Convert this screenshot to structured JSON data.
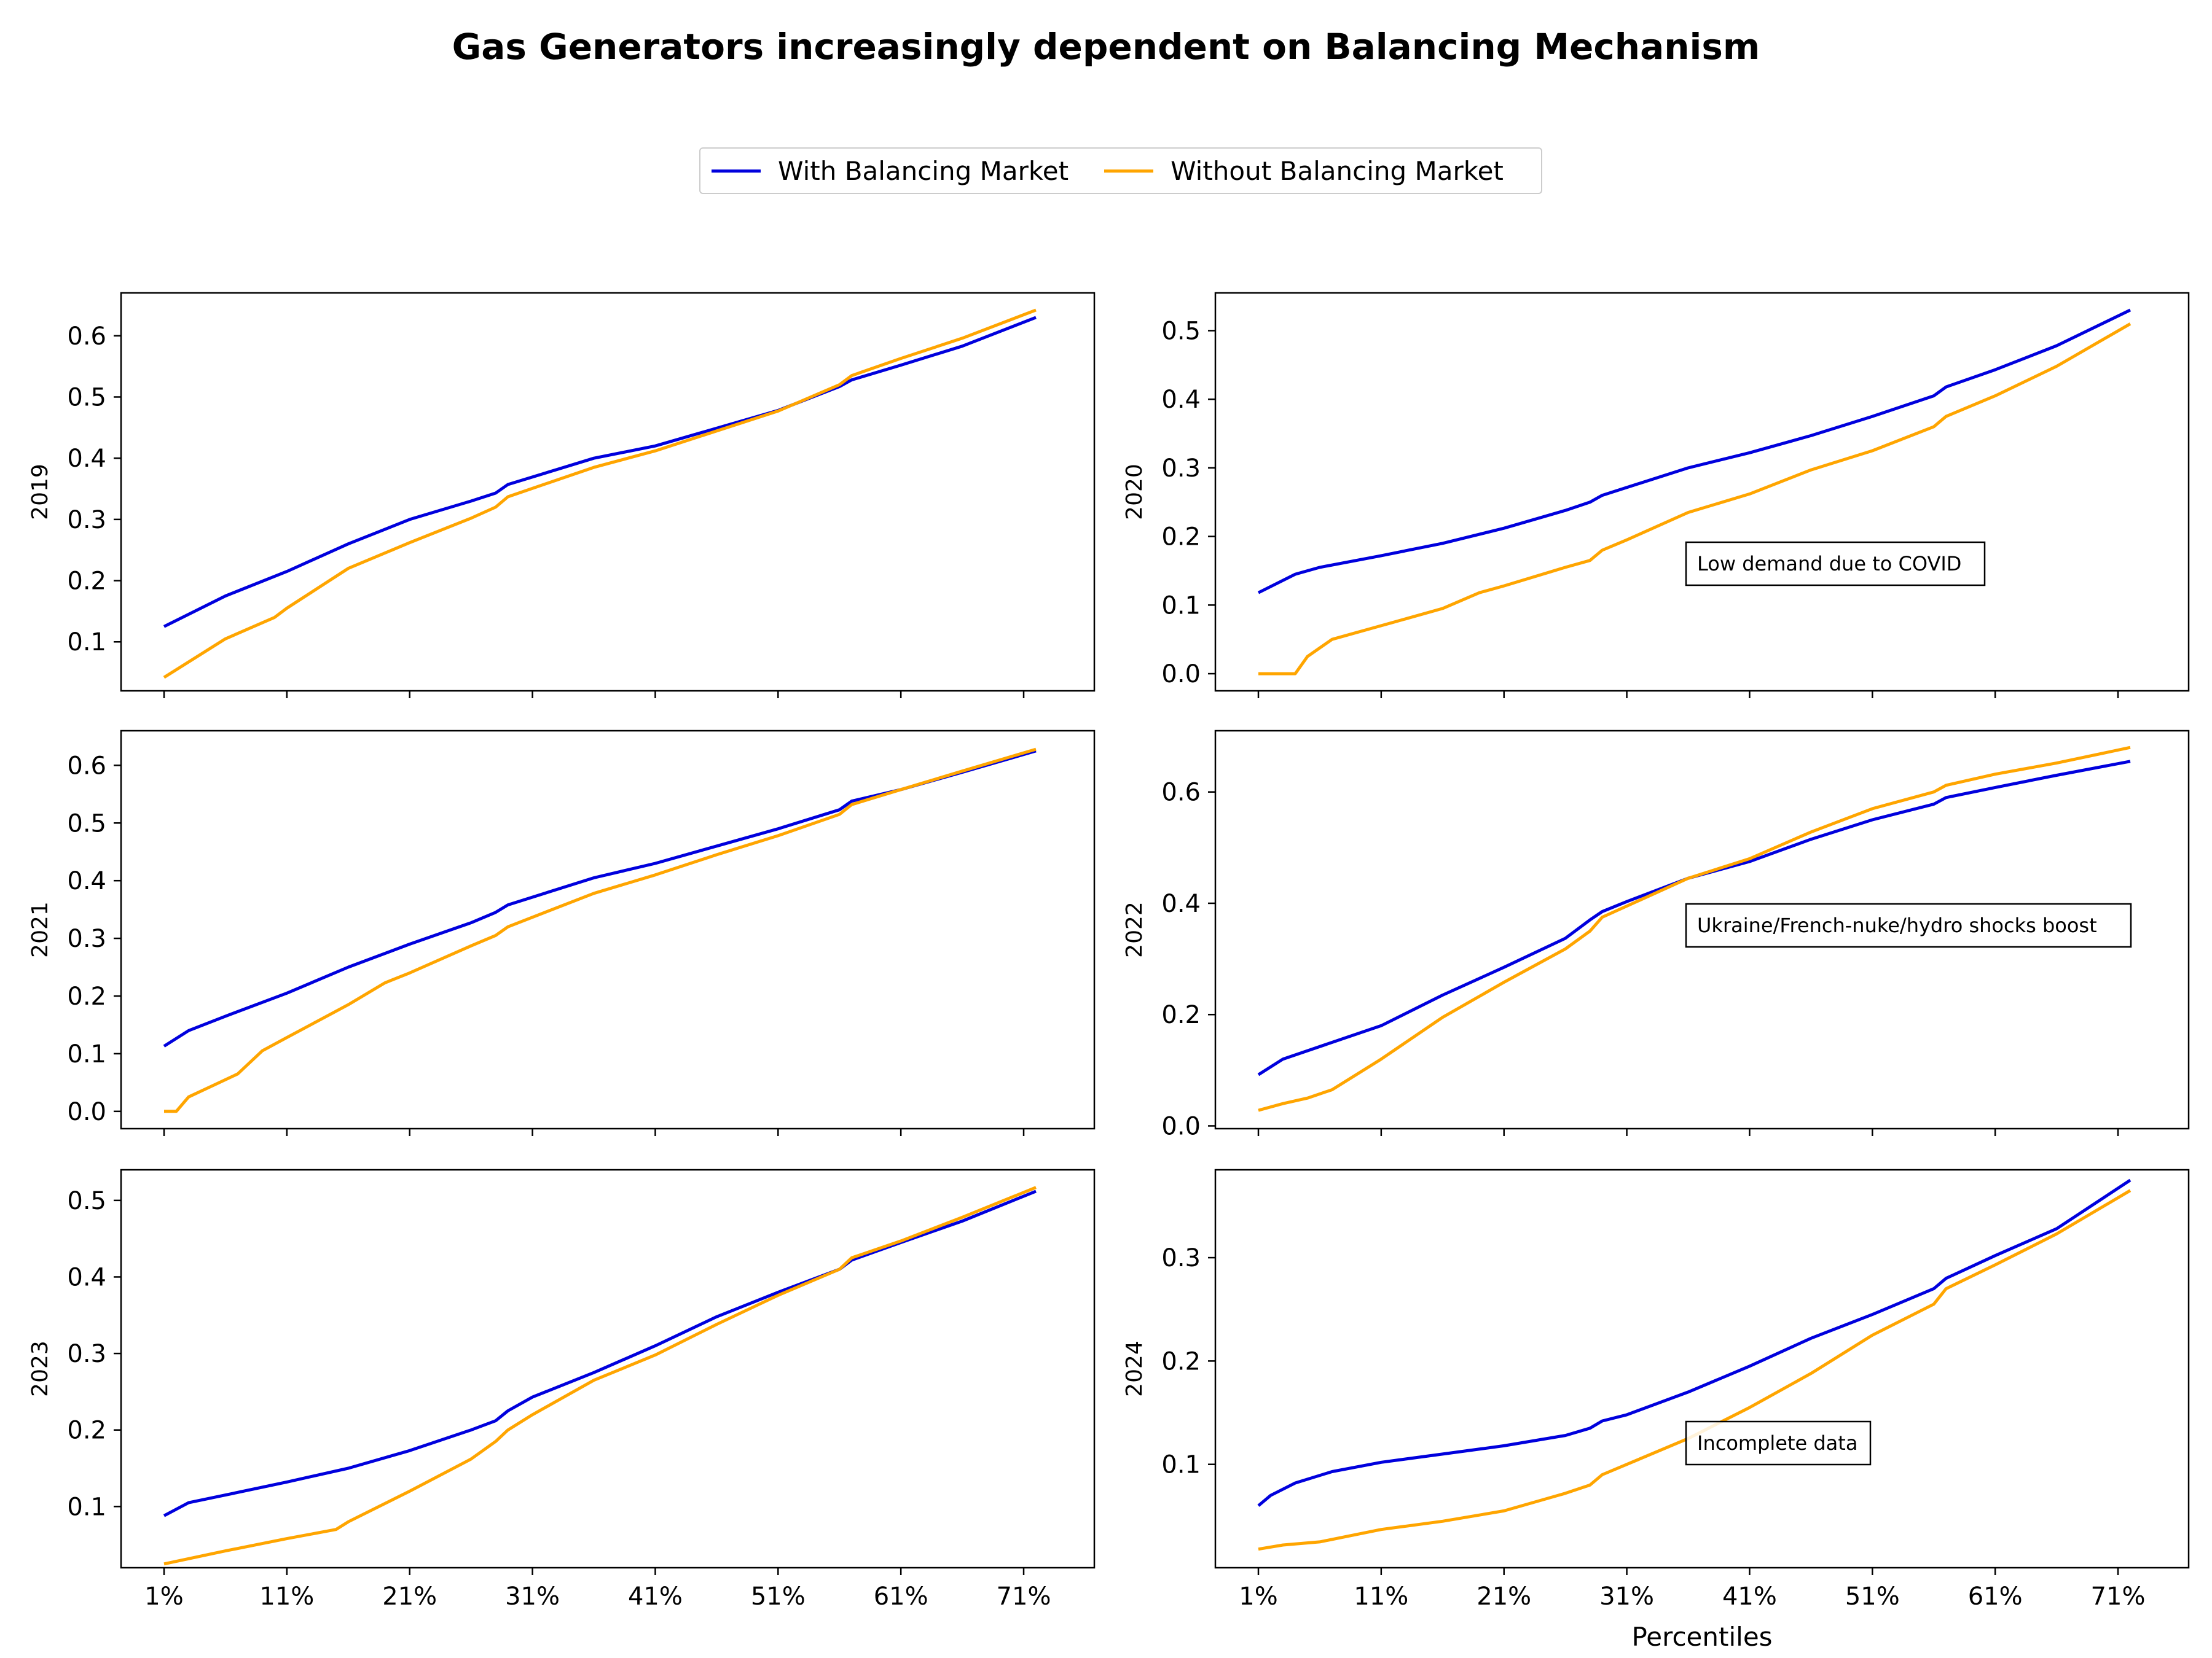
{
  "title": "Gas Generators increasingly dependent on Balancing Mechanism",
  "colors": {
    "with": "#0000dd",
    "without": "#ffa500"
  },
  "legend": [
    {
      "label": "With Balancing Market",
      "color": "#0000dd"
    },
    {
      "label": "Without Balancing Market",
      "color": "#ffa500"
    }
  ],
  "x_tick_labels": [
    "1%",
    "11%",
    "21%",
    "31%",
    "41%",
    "51%",
    "61%",
    "71%"
  ],
  "x_label": "Percentiles",
  "chart_data": [
    {
      "type": "line",
      "ylabel": "2019",
      "xlim": [
        1,
        72
      ],
      "ylim": [
        0.02,
        0.67
      ],
      "yticks": [
        0.1,
        0.2,
        0.3,
        0.4,
        0.5,
        0.6
      ],
      "grid": false,
      "annotation": "",
      "series": [
        {
          "name": "With Balancing Market",
          "x": [
            1,
            6,
            11,
            16,
            21,
            26,
            28,
            29,
            36,
            41,
            51,
            56,
            57,
            61,
            66,
            72
          ],
          "y": [
            0.125,
            0.175,
            0.215,
            0.26,
            0.3,
            0.33,
            0.343,
            0.357,
            0.4,
            0.42,
            0.478,
            0.517,
            0.528,
            0.552,
            0.583,
            0.63
          ]
        },
        {
          "name": "Without Balancing Market",
          "x": [
            1,
            6,
            10,
            11,
            16,
            21,
            26,
            28,
            29,
            36,
            41,
            51,
            56,
            57,
            61,
            66,
            72
          ],
          "y": [
            0.042,
            0.105,
            0.14,
            0.155,
            0.22,
            0.262,
            0.302,
            0.32,
            0.337,
            0.385,
            0.412,
            0.477,
            0.52,
            0.535,
            0.563,
            0.596,
            0.642
          ]
        }
      ]
    },
    {
      "type": "line",
      "ylabel": "2020",
      "xlim": [
        1,
        72
      ],
      "ylim": [
        -0.025,
        0.555
      ],
      "yticks": [
        0.0,
        0.1,
        0.2,
        0.3,
        0.4,
        0.5
      ],
      "grid": false,
      "annotation": "Low demand due to COVID",
      "series": [
        {
          "name": "With Balancing Market",
          "x": [
            1,
            4,
            6,
            11,
            16,
            21,
            26,
            28,
            29,
            36,
            41,
            46,
            51,
            56,
            57,
            61,
            66,
            72
          ],
          "y": [
            0.118,
            0.145,
            0.155,
            0.172,
            0.19,
            0.212,
            0.238,
            0.25,
            0.26,
            0.3,
            0.322,
            0.347,
            0.375,
            0.405,
            0.418,
            0.443,
            0.478,
            0.53
          ]
        },
        {
          "name": "Without Balancing Market",
          "x": [
            1,
            4,
            5,
            7,
            11,
            16,
            19,
            21,
            26,
            28,
            29,
            31,
            36,
            41,
            46,
            51,
            56,
            57,
            61,
            66,
            72
          ],
          "y": [
            0.0,
            0.0,
            0.025,
            0.05,
            0.07,
            0.095,
            0.118,
            0.128,
            0.155,
            0.165,
            0.18,
            0.195,
            0.235,
            0.262,
            0.297,
            0.325,
            0.36,
            0.375,
            0.405,
            0.448,
            0.51
          ]
        }
      ]
    },
    {
      "type": "line",
      "ylabel": "2021",
      "xlim": [
        1,
        72
      ],
      "ylim": [
        -0.03,
        0.66
      ],
      "yticks": [
        0.0,
        0.1,
        0.2,
        0.3,
        0.4,
        0.5,
        0.6
      ],
      "grid": false,
      "annotation": "",
      "series": [
        {
          "name": "With Balancing Market",
          "x": [
            1,
            3,
            6,
            11,
            16,
            21,
            26,
            28,
            29,
            36,
            41,
            46,
            51,
            56,
            57,
            61,
            66,
            72
          ],
          "y": [
            0.113,
            0.14,
            0.165,
            0.205,
            0.25,
            0.29,
            0.327,
            0.345,
            0.358,
            0.405,
            0.43,
            0.46,
            0.49,
            0.523,
            0.538,
            0.558,
            0.588,
            0.625
          ]
        },
        {
          "name": "Without Balancing Market",
          "x": [
            1,
            2,
            3,
            5,
            7,
            9,
            11,
            16,
            19,
            21,
            26,
            28,
            29,
            36,
            41,
            46,
            51,
            56,
            57,
            61,
            66,
            72
          ],
          "y": [
            0.0,
            0.0,
            0.025,
            0.045,
            0.065,
            0.105,
            0.128,
            0.185,
            0.223,
            0.24,
            0.287,
            0.305,
            0.32,
            0.378,
            0.41,
            0.445,
            0.478,
            0.515,
            0.532,
            0.558,
            0.59,
            0.628
          ]
        }
      ]
    },
    {
      "type": "line",
      "ylabel": "2022",
      "xlim": [
        1,
        72
      ],
      "ylim": [
        -0.005,
        0.71
      ],
      "yticks": [
        0.0,
        0.2,
        0.4,
        0.6
      ],
      "grid": false,
      "annotation": "Ukraine/French-nuke/hydro shocks boost",
      "series": [
        {
          "name": "With Balancing Market",
          "x": [
            1,
            3,
            5,
            11,
            16,
            21,
            26,
            28,
            29,
            31,
            36,
            41,
            46,
            51,
            56,
            57,
            61,
            66,
            72
          ],
          "y": [
            0.092,
            0.12,
            0.135,
            0.18,
            0.235,
            0.285,
            0.337,
            0.37,
            0.385,
            0.403,
            0.445,
            0.475,
            0.515,
            0.55,
            0.578,
            0.59,
            0.608,
            0.63,
            0.655
          ]
        },
        {
          "name": "Without Balancing Market",
          "x": [
            1,
            3,
            5,
            7,
            11,
            16,
            21,
            26,
            28,
            29,
            31,
            36,
            41,
            46,
            51,
            56,
            57,
            61,
            66,
            72
          ],
          "y": [
            0.028,
            0.04,
            0.05,
            0.065,
            0.12,
            0.195,
            0.258,
            0.318,
            0.35,
            0.375,
            0.395,
            0.445,
            0.48,
            0.528,
            0.57,
            0.6,
            0.612,
            0.632,
            0.652,
            0.68
          ]
        }
      ]
    },
    {
      "type": "line",
      "ylabel": "2023",
      "xlim": [
        1,
        72
      ],
      "ylim": [
        0.02,
        0.54
      ],
      "yticks": [
        0.1,
        0.2,
        0.3,
        0.4,
        0.5
      ],
      "grid": false,
      "annotation": "",
      "series": [
        {
          "name": "With Balancing Market",
          "x": [
            1,
            3,
            6,
            11,
            16,
            21,
            26,
            28,
            29,
            31,
            36,
            41,
            46,
            51,
            56,
            57,
            61,
            66,
            72
          ],
          "y": [
            0.088,
            0.105,
            0.115,
            0.132,
            0.15,
            0.173,
            0.2,
            0.212,
            0.225,
            0.243,
            0.275,
            0.31,
            0.348,
            0.38,
            0.41,
            0.422,
            0.445,
            0.473,
            0.512
          ]
        },
        {
          "name": "Without Balancing Market",
          "x": [
            1,
            6,
            11,
            15,
            16,
            21,
            26,
            28,
            29,
            31,
            36,
            41,
            46,
            51,
            56,
            57,
            61,
            66,
            72
          ],
          "y": [
            0.025,
            0.042,
            0.058,
            0.07,
            0.08,
            0.12,
            0.162,
            0.185,
            0.2,
            0.22,
            0.265,
            0.298,
            0.338,
            0.376,
            0.41,
            0.425,
            0.447,
            0.478,
            0.517
          ]
        }
      ]
    },
    {
      "type": "line",
      "ylabel": "2024",
      "xlim": [
        1,
        72
      ],
      "ylim": [
        0.0,
        0.385
      ],
      "yticks": [
        0.1,
        0.2,
        0.3
      ],
      "grid": false,
      "annotation": "Incomplete data",
      "series": [
        {
          "name": "With Balancing Market",
          "x": [
            1,
            2,
            4,
            7,
            11,
            16,
            21,
            26,
            28,
            29,
            31,
            36,
            41,
            46,
            51,
            56,
            57,
            61,
            66,
            72
          ],
          "y": [
            0.06,
            0.07,
            0.082,
            0.093,
            0.102,
            0.11,
            0.118,
            0.128,
            0.135,
            0.142,
            0.148,
            0.17,
            0.195,
            0.222,
            0.245,
            0.27,
            0.28,
            0.302,
            0.328,
            0.375
          ]
        },
        {
          "name": "Without Balancing Market",
          "x": [
            1,
            3,
            6,
            11,
            16,
            21,
            26,
            28,
            29,
            31,
            36,
            41,
            46,
            51,
            56,
            57,
            61,
            66,
            72
          ],
          "y": [
            0.018,
            0.022,
            0.025,
            0.037,
            0.045,
            0.055,
            0.072,
            0.08,
            0.09,
            0.1,
            0.125,
            0.155,
            0.188,
            0.225,
            0.255,
            0.27,
            0.293,
            0.323,
            0.365
          ]
        }
      ]
    }
  ]
}
